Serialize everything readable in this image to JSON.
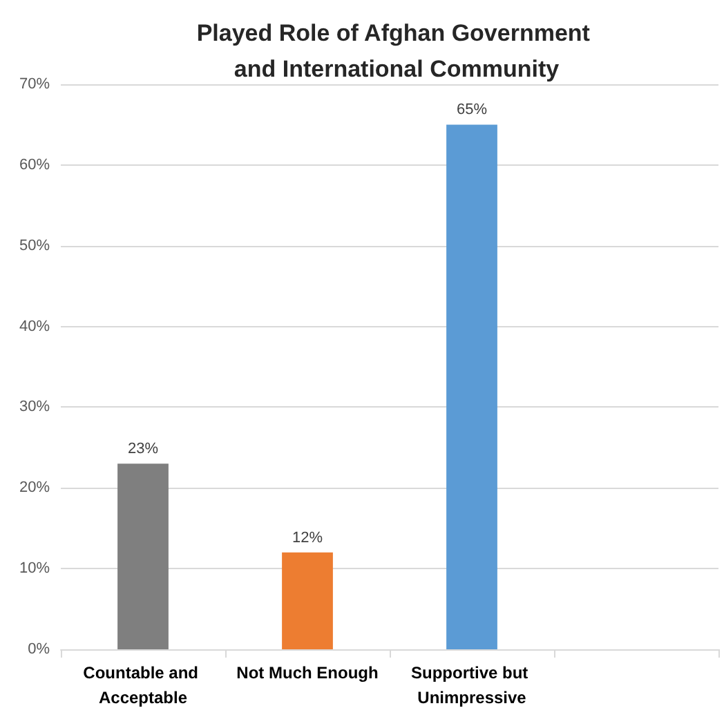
{
  "chart_data": {
    "type": "bar",
    "title": "Played Role of Afghan Government and International Community",
    "categories": [
      "Countable and Acceptable",
      "Not Much Enough",
      "Supportive but Unimpressive",
      null
    ],
    "values": [
      23,
      12,
      65,
      null
    ],
    "colors": [
      "#7f7f7f",
      "#ed7d31",
      "#5b9bd5",
      "#5b9bd5"
    ],
    "value_labels": [
      "23%",
      "12%",
      "65%",
      null
    ],
    "ylim": [
      0,
      70
    ],
    "yticks": [
      {
        "value": 0,
        "label": "0%"
      },
      {
        "value": 10,
        "label": "10%"
      },
      {
        "value": 20,
        "label": "20%"
      },
      {
        "value": 30,
        "label": "30%"
      },
      {
        "value": 40,
        "label": "40%"
      },
      {
        "value": 50,
        "label": "50%"
      },
      {
        "value": 60,
        "label": "60%"
      },
      {
        "value": 70,
        "label": "70%"
      }
    ],
    "grid": true
  }
}
